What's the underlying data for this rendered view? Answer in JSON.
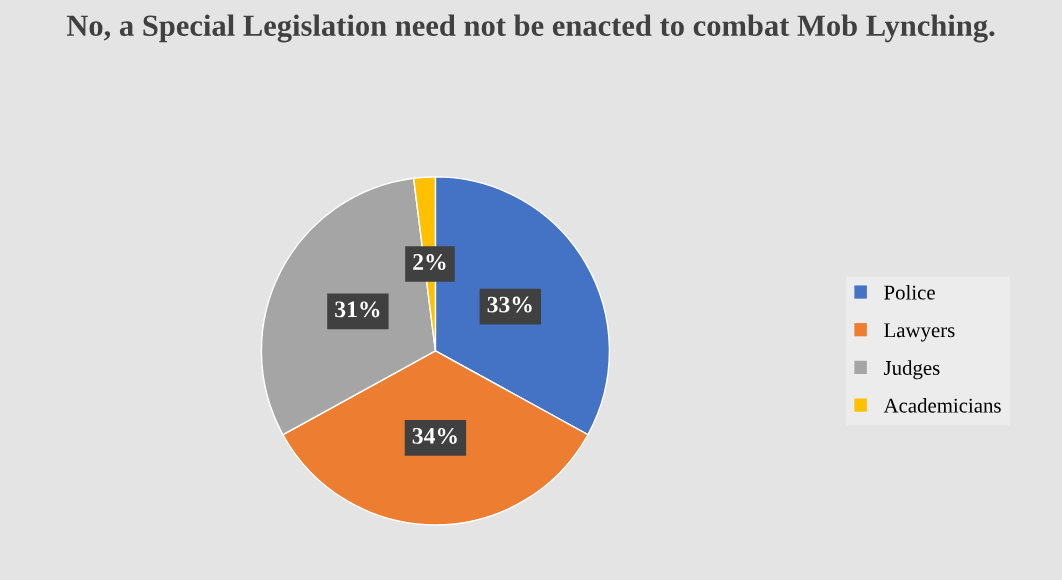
{
  "chart_data": {
    "type": "pie",
    "title": "No, a Special Legislation need not be enacted to combat Mob Lynching.",
    "categories": [
      "Police",
      "Lawyers",
      "Judges",
      "Academicians"
    ],
    "values": [
      33,
      34,
      31,
      2
    ],
    "colors": [
      "#4472c4",
      "#ed7d31",
      "#a5a5a5",
      "#ffc000"
    ],
    "value_labels": [
      "33%",
      "34%",
      "31%",
      "2%"
    ],
    "legend": "right"
  }
}
